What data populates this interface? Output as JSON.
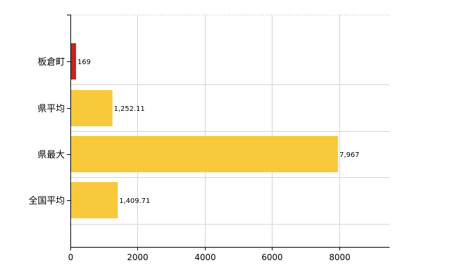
{
  "chart_data": {
    "type": "bar",
    "orientation": "horizontal",
    "categories": [
      "板倉町",
      "県平均",
      "県最大",
      "全国平均"
    ],
    "values": [
      169,
      1252.11,
      7967,
      1409.71
    ],
    "value_labels": [
      "169",
      "1,252.11",
      "7,967",
      "1,409.71"
    ],
    "bar_colors": [
      "#c8221d",
      "#f8c93b",
      "#f8c93b",
      "#f8c93b"
    ],
    "xlim": [
      0,
      9500
    ],
    "xticks": [
      0,
      2000,
      4000,
      6000,
      8000
    ],
    "xtick_labels": [
      "0",
      "2000",
      "4000",
      "6000",
      "8000"
    ],
    "grid": true,
    "legend": false
  }
}
